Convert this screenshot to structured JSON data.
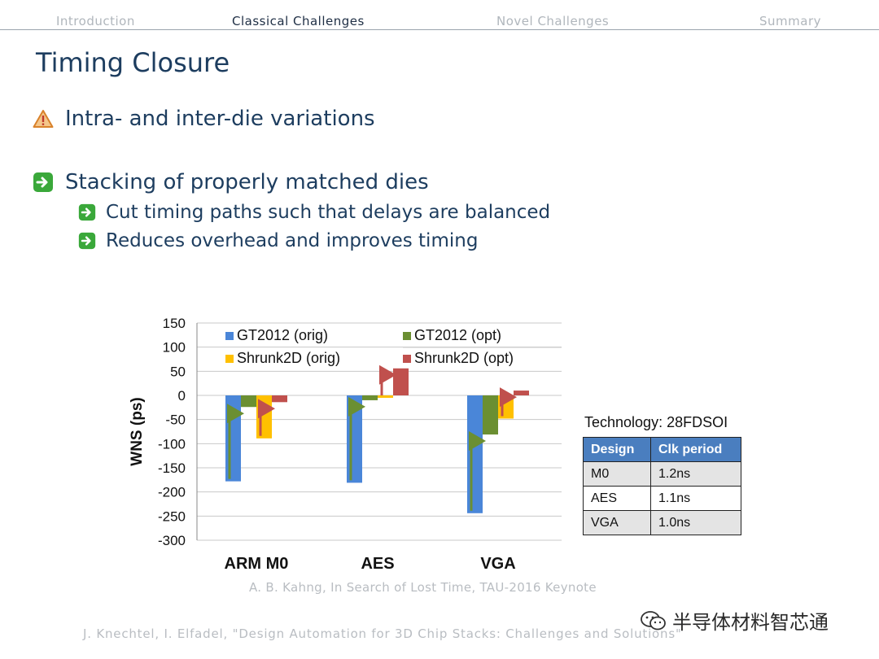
{
  "nav": {
    "items": [
      "Introduction",
      "Classical Challenges",
      "Novel Challenges",
      "Summary"
    ],
    "active_index": 1
  },
  "slide": {
    "title": "Timing Closure",
    "bullets": [
      {
        "icon": "warning-triangle-icon",
        "text": "Intra- and inter-die variations"
      },
      {
        "icon": "green-arrow-icon",
        "text": "Stacking of properly matched dies"
      },
      {
        "icon": "green-arrow-icon",
        "text": "Cut timing paths such that delays are balanced"
      },
      {
        "icon": "green-arrow-icon",
        "text": "Reduces overhead and improves timing"
      }
    ]
  },
  "chart_data": {
    "type": "bar",
    "categories": [
      "ARM M0",
      "AES",
      "VGA"
    ],
    "series": [
      {
        "name": "GT2012 (orig)",
        "color": "#4a86d8",
        "values": [
          -178,
          -181,
          -244
        ]
      },
      {
        "name": "GT2012 (opt)",
        "color": "#6b8f32",
        "values": [
          -24,
          -10,
          -81
        ]
      },
      {
        "name": "Shrunk2D (orig)",
        "color": "#ffc000",
        "values": [
          -89,
          -5,
          -48
        ]
      },
      {
        "name": "Shrunk2D (opt)",
        "color": "#c0504d",
        "values": [
          -14,
          56,
          10
        ]
      }
    ],
    "ylabel": "WNS (ps)",
    "ylim": [
      -300,
      150
    ],
    "yticks": [
      150,
      100,
      50,
      0,
      -50,
      -100,
      -150,
      -200,
      -250,
      -300
    ],
    "legend": "top",
    "grid": true,
    "annotations": "arrows from orig to opt bars"
  },
  "tech": {
    "label": "Technology: 28FDSOI",
    "headers": [
      "Design",
      "Clk period"
    ],
    "rows": [
      [
        "M0",
        "1.2ns"
      ],
      [
        "AES",
        "1.1ns"
      ],
      [
        "VGA",
        "1.0ns"
      ]
    ]
  },
  "citations": {
    "keynote": "A. B. Kahng, In Search of Lost Time, TAU-2016 Keynote",
    "source": "J. Knechtel, I. Elfadel, \"Design Automation for 3D Chip Stacks: Challenges and Solutions\""
  },
  "watermark": {
    "text": "半导体材料智芯通",
    "icon": "wechat-icon"
  }
}
